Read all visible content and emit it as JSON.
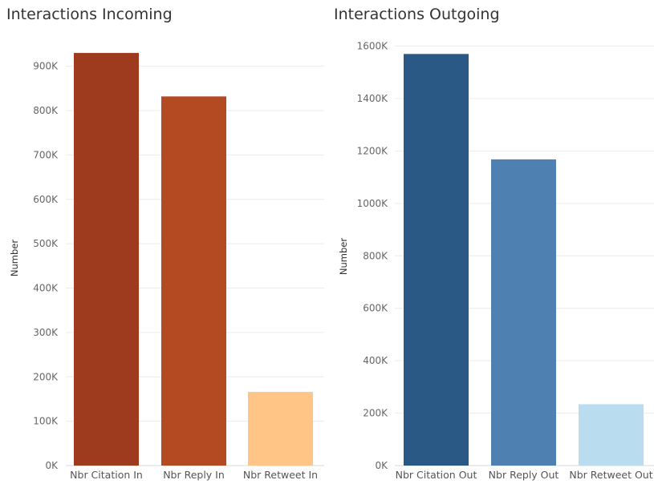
{
  "chart_data": [
    {
      "type": "bar",
      "title": "Interactions Incoming",
      "ylabel": "Number",
      "xlabel": "",
      "categories": [
        "Nbr Citation In",
        "Nbr Reply In",
        "Nbr Retweet In"
      ],
      "values": [
        930000,
        832000,
        166000
      ],
      "colors": [
        "#9e3b1f",
        "#b34a21",
        "#fec586"
      ],
      "ylim": [
        0,
        950000
      ],
      "yticks": [
        0,
        100000,
        200000,
        300000,
        400000,
        500000,
        600000,
        700000,
        800000,
        900000
      ],
      "ytick_labels": [
        "0K",
        "100K",
        "200K",
        "300K",
        "400K",
        "500K",
        "600K",
        "700K",
        "800K",
        "900K"
      ],
      "grid": true
    },
    {
      "type": "bar",
      "title": "Interactions Outgoing",
      "ylabel": "Number",
      "xlabel": "",
      "categories": [
        "Nbr Citation Out",
        "Nbr Reply Out",
        "Nbr Retweet Out"
      ],
      "values": [
        1570000,
        1168000,
        234000
      ],
      "colors": [
        "#2b5986",
        "#4e80b1",
        "#b9dcef"
      ],
      "ylim": [
        0,
        1620000
      ],
      "yticks": [
        0,
        200000,
        400000,
        600000,
        800000,
        1000000,
        1200000,
        1400000,
        1600000
      ],
      "ytick_labels": [
        "0K",
        "200K",
        "400K",
        "600K",
        "800K",
        "1000K",
        "1200K",
        "1400K",
        "1600K"
      ],
      "grid": true
    }
  ]
}
